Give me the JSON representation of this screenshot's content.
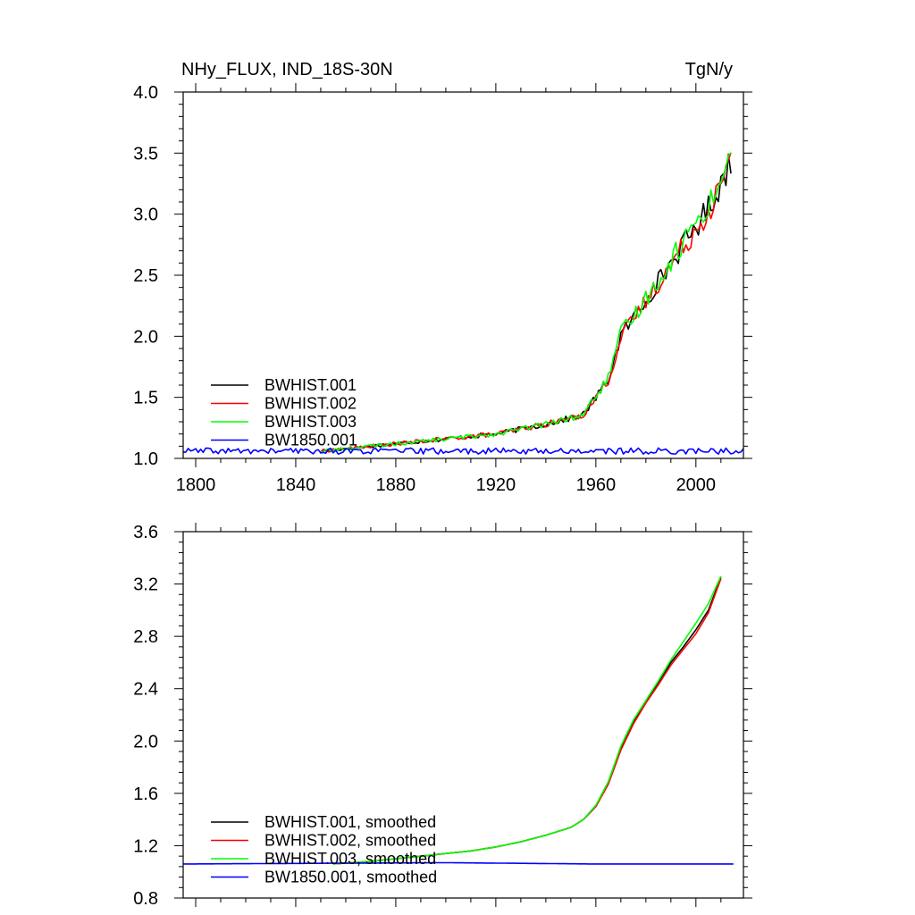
{
  "chart_data": [
    {
      "type": "line",
      "title": "NHy_FLUX, IND_18S-30N",
      "units": "TgN/y",
      "xlim": [
        1795,
        2019
      ],
      "ylim": [
        1.0,
        4.0
      ],
      "x_ticks": [
        1800,
        1840,
        1880,
        1920,
        1960,
        2000
      ],
      "y_ticks": [
        "1.0",
        "1.5",
        "2.0",
        "2.5",
        "3.0",
        "3.5",
        "4.0"
      ],
      "grid": false,
      "legend_position": "bottom-left",
      "series": [
        {
          "name": "BWHIST.001",
          "color": "#000000",
          "x_start": 1850,
          "x_end": 2014,
          "x": [
            1850,
            1860,
            1870,
            1880,
            1890,
            1900,
            1910,
            1920,
            1930,
            1940,
            1950,
            1955,
            1960,
            1965,
            1970,
            1975,
            1980,
            1985,
            1990,
            1995,
            2000,
            2005,
            2010,
            2014
          ],
          "y": [
            1.06,
            1.08,
            1.1,
            1.12,
            1.14,
            1.16,
            1.18,
            1.2,
            1.24,
            1.28,
            1.33,
            1.36,
            1.5,
            1.65,
            2.0,
            2.15,
            2.3,
            2.45,
            2.6,
            2.75,
            2.9,
            3.05,
            3.25,
            3.45
          ]
        },
        {
          "name": "BWHIST.002",
          "color": "#ff0000",
          "x_start": 1850,
          "x_end": 2014,
          "x": [
            1850,
            1860,
            1870,
            1880,
            1890,
            1900,
            1910,
            1920,
            1930,
            1940,
            1950,
            1955,
            1960,
            1965,
            1970,
            1975,
            1980,
            1985,
            1990,
            1995,
            2000,
            2005,
            2010,
            2014
          ],
          "y": [
            1.06,
            1.08,
            1.1,
            1.12,
            1.14,
            1.16,
            1.18,
            1.2,
            1.24,
            1.28,
            1.33,
            1.36,
            1.5,
            1.64,
            1.98,
            2.14,
            2.29,
            2.44,
            2.58,
            2.74,
            2.88,
            3.03,
            3.23,
            3.42
          ]
        },
        {
          "name": "BWHIST.003",
          "color": "#00ff00",
          "x_start": 1850,
          "x_end": 2014,
          "x": [
            1850,
            1860,
            1870,
            1880,
            1890,
            1900,
            1910,
            1920,
            1930,
            1940,
            1950,
            1955,
            1960,
            1965,
            1970,
            1975,
            1980,
            1985,
            1990,
            1995,
            2000,
            2005,
            2010,
            2014
          ],
          "y": [
            1.06,
            1.08,
            1.1,
            1.12,
            1.14,
            1.16,
            1.18,
            1.2,
            1.24,
            1.28,
            1.33,
            1.36,
            1.51,
            1.66,
            2.02,
            2.16,
            2.31,
            2.46,
            2.62,
            2.78,
            2.93,
            3.08,
            3.28,
            3.48
          ]
        },
        {
          "name": "BW1850.001",
          "color": "#0000ff",
          "x_start": 1795,
          "x_end": 2019,
          "x": [
            1795,
            2019
          ],
          "y": [
            1.06,
            1.06
          ]
        }
      ]
    },
    {
      "type": "line",
      "xlim": [
        1795,
        2019
      ],
      "ylim": [
        0.8,
        3.6
      ],
      "x_ticks": [
        1800,
        1840,
        1880,
        1920,
        1960,
        2000
      ],
      "y_ticks": [
        "0.8",
        "1.2",
        "1.6",
        "2.0",
        "2.4",
        "2.8",
        "3.2",
        "3.6"
      ],
      "grid": false,
      "legend_position": "bottom-left",
      "series": [
        {
          "name": "BWHIST.001, smoothed",
          "color": "#000000",
          "x": [
            1855,
            1870,
            1880,
            1890,
            1900,
            1910,
            1920,
            1930,
            1940,
            1950,
            1955,
            1960,
            1965,
            1970,
            1975,
            1980,
            1985,
            1990,
            1995,
            2000,
            2005,
            2010
          ],
          "y": [
            1.06,
            1.08,
            1.1,
            1.12,
            1.14,
            1.16,
            1.19,
            1.23,
            1.28,
            1.34,
            1.4,
            1.5,
            1.68,
            1.95,
            2.15,
            2.3,
            2.45,
            2.6,
            2.72,
            2.85,
            3.0,
            3.25
          ]
        },
        {
          "name": "BWHIST.002, smoothed",
          "color": "#ff0000",
          "x": [
            1855,
            1870,
            1880,
            1890,
            1900,
            1910,
            1920,
            1930,
            1940,
            1950,
            1955,
            1960,
            1965,
            1970,
            1975,
            1980,
            1985,
            1990,
            1995,
            2000,
            2005,
            2010
          ],
          "y": [
            1.06,
            1.08,
            1.1,
            1.12,
            1.14,
            1.16,
            1.19,
            1.23,
            1.28,
            1.34,
            1.4,
            1.5,
            1.67,
            1.93,
            2.13,
            2.29,
            2.43,
            2.58,
            2.7,
            2.82,
            2.98,
            3.24
          ]
        },
        {
          "name": "BWHIST.003, smoothed",
          "color": "#00ff00",
          "x": [
            1855,
            1870,
            1880,
            1890,
            1900,
            1910,
            1920,
            1930,
            1940,
            1950,
            1955,
            1960,
            1965,
            1970,
            1975,
            1980,
            1985,
            1990,
            1995,
            2000,
            2005,
            2010
          ],
          "y": [
            1.06,
            1.08,
            1.1,
            1.12,
            1.14,
            1.16,
            1.19,
            1.23,
            1.28,
            1.34,
            1.4,
            1.51,
            1.69,
            1.96,
            2.16,
            2.31,
            2.46,
            2.62,
            2.76,
            2.9,
            3.05,
            3.26
          ]
        },
        {
          "name": "BW1850.001, smoothed",
          "color": "#0000ff",
          "x": [
            1795,
            1900,
            1960,
            2015
          ],
          "y": [
            1.06,
            1.07,
            1.06,
            1.06
          ]
        }
      ]
    }
  ]
}
